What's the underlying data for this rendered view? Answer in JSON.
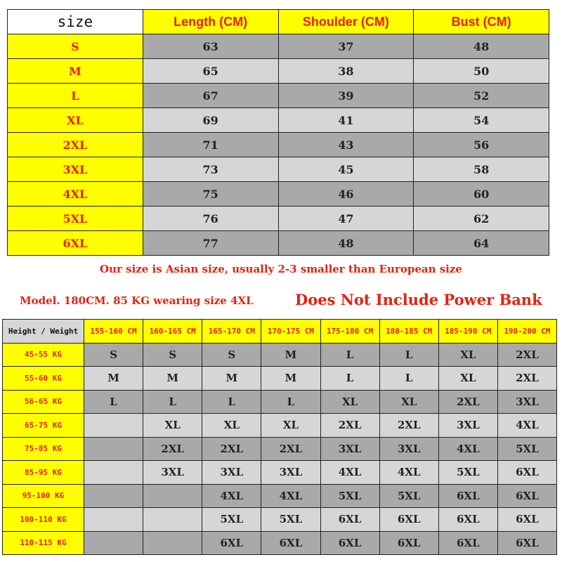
{
  "measurements": {
    "headers": [
      "size",
      "Length (CM)",
      "Shoulder (CM)",
      "Bust (CM)"
    ],
    "rows": [
      [
        "S",
        "63",
        "37",
        "48"
      ],
      [
        "M",
        "65",
        "38",
        "50"
      ],
      [
        "L",
        "67",
        "39",
        "52"
      ],
      [
        "XL",
        "69",
        "41",
        "54"
      ],
      [
        "2XL",
        "71",
        "43",
        "56"
      ],
      [
        "3XL",
        "73",
        "45",
        "58"
      ],
      [
        "4XL",
        "75",
        "46",
        "60"
      ],
      [
        "5XL",
        "76",
        "47",
        "62"
      ],
      [
        "6XL",
        "77",
        "48",
        "64"
      ]
    ]
  },
  "notes": {
    "asian_size": "Our size is Asian size, usually 2-3 smaller than European size",
    "model": "Model. 180CM. 85 KG wearing size 4XL",
    "power_bank": "Does Not Include Power Bank"
  },
  "recommendation": {
    "headers": [
      "Height / Weight",
      "155-160 CM",
      "160-165 CM",
      "165-170 CM",
      "170-175 CM",
      "175-180 CM",
      "180-185 CM",
      "185-190 CM",
      "190-200 CM"
    ],
    "rows": [
      [
        "45-55 KG",
        "S",
        "S",
        "S",
        "M",
        "L",
        "L",
        "XL",
        "2XL"
      ],
      [
        "55-60 KG",
        "M",
        "M",
        "M",
        "M",
        "L",
        "L",
        "XL",
        "2XL"
      ],
      [
        "56-65 KG",
        "L",
        "L",
        "L",
        "L",
        "XL",
        "XL",
        "2XL",
        "3XL"
      ],
      [
        "65-75 KG",
        "",
        "XL",
        "XL",
        "XL",
        "2XL",
        "2XL",
        "3XL",
        "4XL"
      ],
      [
        "75-85 KG",
        "",
        "2XL",
        "2XL",
        "2XL",
        "3XL",
        "3XL",
        "4XL",
        "5XL"
      ],
      [
        "85-95 KG",
        "",
        "3XL",
        "3XL",
        "3XL",
        "4XL",
        "4XL",
        "5XL",
        "6XL"
      ],
      [
        "95-100 KG",
        "",
        "",
        "4XL",
        "4XL",
        "5XL",
        "5XL",
        "6XL",
        "6XL"
      ],
      [
        "100-110 KG",
        "",
        "",
        "5XL",
        "5XL",
        "6XL",
        "6XL",
        "6XL",
        "6XL"
      ],
      [
        "110-115 KG",
        "",
        "",
        "6XL",
        "6XL",
        "6XL",
        "6XL",
        "6XL",
        "6XL"
      ]
    ]
  },
  "colors": {
    "header_yellow": "#ffff00",
    "accent_red": "#e8200c",
    "row_dark": "#a9a9a9",
    "row_light": "#d6d6d6"
  }
}
